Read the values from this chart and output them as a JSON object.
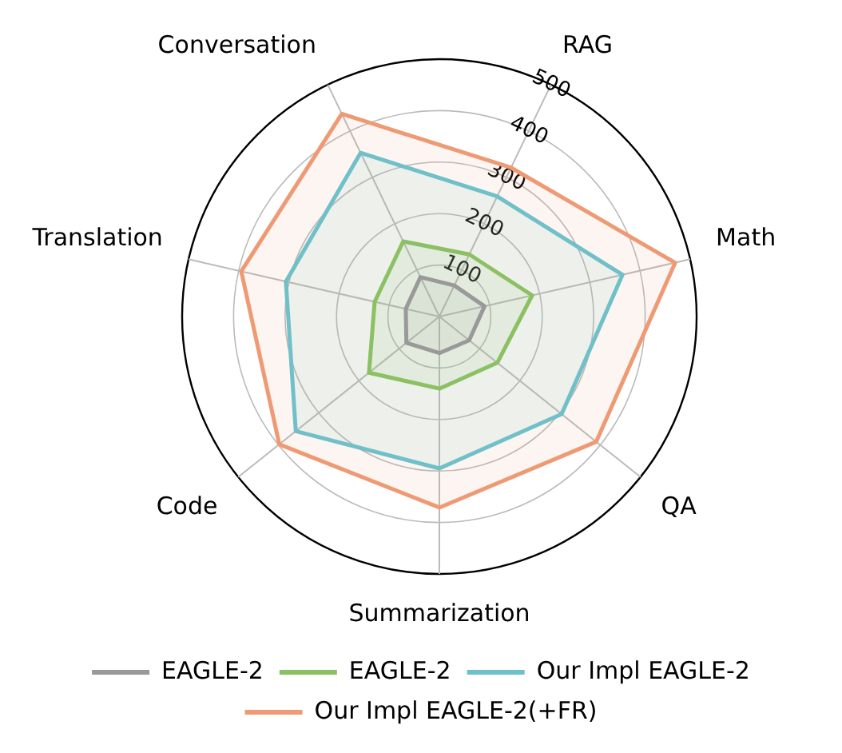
{
  "chart_data": {
    "type": "radar",
    "categories": [
      "RAG",
      "Math",
      "QA",
      "Summarization",
      "Code",
      "Translation",
      "Conversation"
    ],
    "series": [
      {
        "name": "EAGLE-2",
        "color": "#999999",
        "values": [
          67,
          90,
          74,
          71,
          82,
          67,
          85
        ]
      },
      {
        "name": "EAGLE-2",
        "color": "#8bc063",
        "values": [
          134,
          185,
          144,
          140,
          175,
          129,
          162
        ]
      },
      {
        "name": "Our Impl EAGLE-2",
        "color": "#6fc0c8",
        "values": [
          259,
          365,
          304,
          295,
          357,
          306,
          353
        ]
      },
      {
        "name": "Our Impl EAGLE-2(+FR)",
        "color": "#ee9a74",
        "values": [
          321,
          470,
          390,
          371,
          398,
          395,
          437
        ]
      }
    ],
    "ylim": [
      0,
      500
    ],
    "yticks": [
      100,
      200,
      300,
      400,
      500
    ],
    "grid": true,
    "legend": "bottom"
  }
}
